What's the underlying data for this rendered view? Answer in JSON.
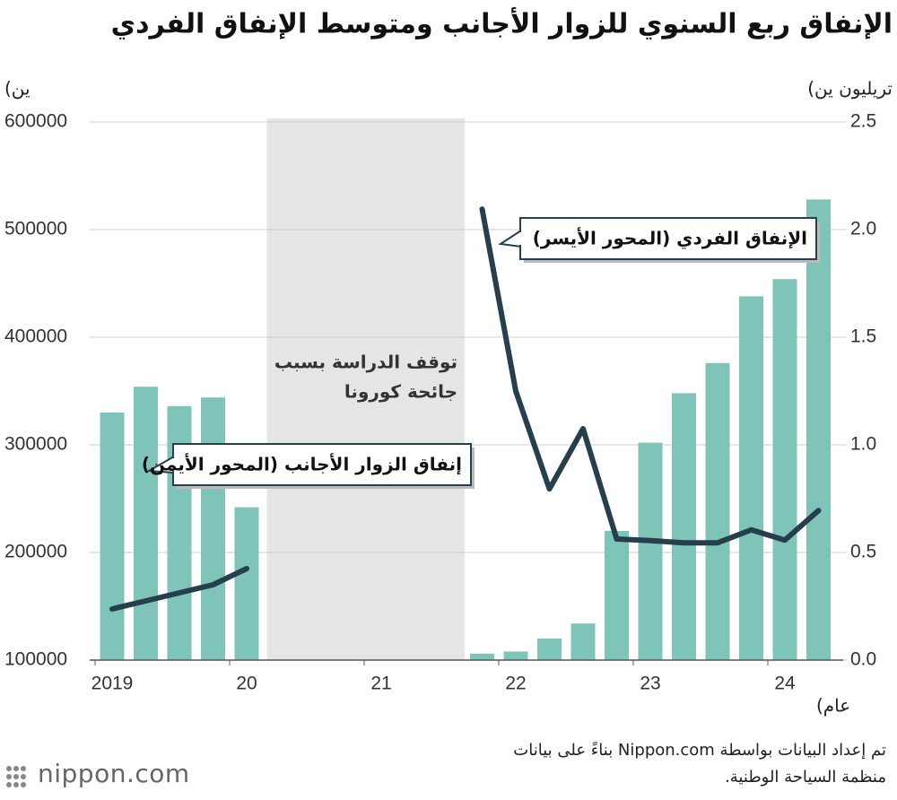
{
  "chart_data": {
    "type": "bar-line",
    "title": "الإنفاق ربع السنوي للزوار الأجانب ومتوسط الإنفاق الفردي",
    "y_label": "ين)",
    "y2_label": "تريليون ين)",
    "x_label": "عام)",
    "annotation": [
      "توقف الدراسة بسبب",
      "جائحة كورونا"
    ],
    "categories": [
      "2019",
      null,
      null,
      null,
      "20",
      null,
      null,
      null,
      "21",
      null,
      null,
      null,
      "22",
      null,
      null,
      null,
      "23",
      null,
      null,
      null,
      "24",
      null
    ],
    "ylim": [
      100000,
      600000
    ],
    "yticks": [
      100000,
      200000,
      300000,
      400000,
      500000,
      600000
    ],
    "y2lim": [
      0,
      2.5
    ],
    "y2ticks": [
      {
        "value": 0,
        "label": "0.0"
      },
      0.5,
      {
        "value": 1,
        "label": "1.0"
      },
      1.5,
      {
        "value": 2,
        "label": "2.0"
      },
      2.5
    ],
    "grid": true,
    "series": [
      {
        "name": "إنفاق الزوار الأجانب (المحور الأيمن)",
        "type": "bar",
        "axis": "y2",
        "color": "#7fc4b8",
        "values": [
          1.15,
          1.27,
          1.18,
          1.22,
          0.71,
          null,
          null,
          null,
          null,
          null,
          null,
          0.03,
          0.04,
          0.1,
          0.17,
          0.6,
          1.01,
          1.24,
          1.38,
          1.69,
          1.77,
          2.14
        ]
      },
      {
        "name": "الإنفاق الفردي (المحور الأيسر)",
        "type": "line",
        "axis": "y",
        "color": "#263f4c",
        "values": [
          147500,
          155000,
          162500,
          170000,
          185000,
          null,
          null,
          null,
          null,
          null,
          null,
          519000,
          350000,
          259000,
          315000,
          212500,
          211000,
          209000,
          209000,
          221000,
          211500,
          239000
        ]
      }
    ]
  },
  "source": "تم إعداد البيانات بواسطة Nippon.com بناءً على بيانات منظمة السياحة الوطنية.",
  "logo": "nippon.com"
}
